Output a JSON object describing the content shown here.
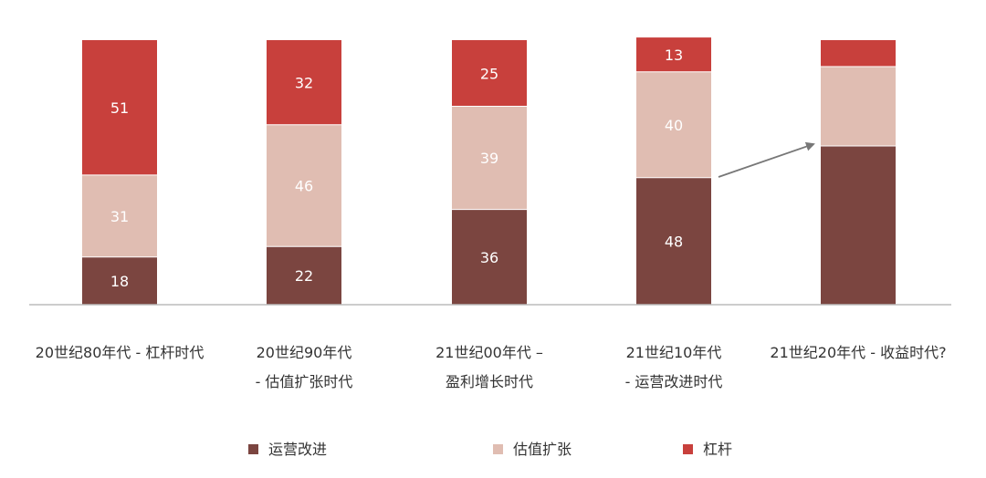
{
  "chart_data": {
    "type": "bar",
    "stacked": true,
    "categories": [
      [
        "20世纪80年代 - 杠杆时代"
      ],
      [
        "20世纪90年代",
        "- 估值扩张时代"
      ],
      [
        "21世纪00年代 –",
        "盈利增长时代"
      ],
      [
        "21世纪10年代",
        "- 运营改进时代"
      ],
      [
        "21世纪20年代 - 收益时代?"
      ]
    ],
    "series": [
      {
        "name": "运营改进",
        "color": "#7b4540",
        "values": [
          18,
          22,
          36,
          48,
          60
        ],
        "show_labels": [
          true,
          true,
          true,
          true,
          false
        ]
      },
      {
        "name": "估值扩张",
        "color": "#e0bdb2",
        "values": [
          31,
          46,
          39,
          40,
          30
        ],
        "show_labels": [
          true,
          true,
          true,
          true,
          false
        ]
      },
      {
        "name": "杠杆",
        "color": "#c8403c",
        "values": [
          51,
          32,
          25,
          13,
          10
        ],
        "show_labels": [
          true,
          true,
          true,
          true,
          false
        ]
      }
    ],
    "ylim": [
      0,
      100
    ],
    "annotation": {
      "type": "arrow",
      "from_category": 3,
      "to_category": 4,
      "color": "#777777"
    },
    "legend": {
      "position": "bottom"
    },
    "grid": false
  }
}
